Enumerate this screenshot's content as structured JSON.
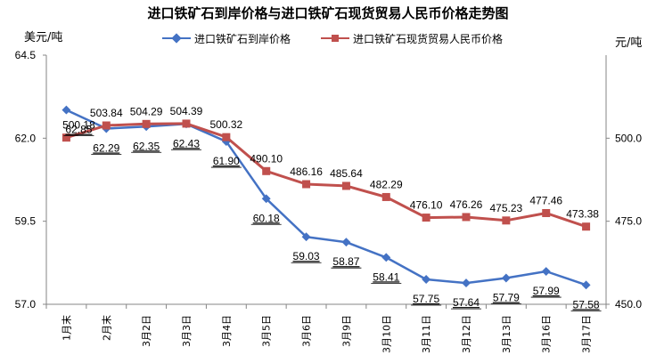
{
  "chart_data": {
    "type": "line",
    "title": "进口铁矿石到岸价格与进口铁矿石现货贸易人民币价格走势图",
    "y_left_unit": "美元/吨",
    "y_right_unit": "元/吨",
    "categories": [
      "1月末",
      "2月末",
      "3月2日",
      "3月3日",
      "3月4日",
      "3月5日",
      "3月6日",
      "3月9日",
      "3月10日",
      "3月11日",
      "3月12日",
      "3月13日",
      "3月16日",
      "3月17日"
    ],
    "y_left": {
      "min": 57.0,
      "max": 64.5,
      "ticks": [
        "57.0",
        "59.5",
        "62.0",
        "64.5"
      ]
    },
    "y_right": {
      "min": 450.0,
      "max": 525.0,
      "ticks": [
        "450.0",
        "475.0",
        "500.0"
      ]
    },
    "series": [
      {
        "name": "进口铁矿石到岸价格",
        "axis": "left",
        "color": "#4472c4",
        "marker": "diamond",
        "values": [
          62.85,
          62.29,
          62.35,
          62.43,
          61.9,
          60.18,
          59.03,
          58.87,
          58.41,
          57.75,
          57.64,
          57.79,
          57.99,
          57.58
        ],
        "labels": [
          "62.85",
          "62.29",
          "62.35",
          "62.43",
          "61.90",
          "60.18",
          "59.03",
          "58.87",
          "58.41",
          "57.75",
          "57.64",
          "57.79",
          "57.99",
          "57.58"
        ]
      },
      {
        "name": "进口铁矿石现货贸易人民币价格",
        "axis": "right",
        "color": "#c0504d",
        "marker": "square",
        "values": [
          500.18,
          503.84,
          504.29,
          504.39,
          500.32,
          490.1,
          486.16,
          485.64,
          482.29,
          476.1,
          476.26,
          475.23,
          477.46,
          473.38
        ],
        "labels": [
          "500.18",
          "503.84",
          "504.29",
          "504.39",
          "500.32",
          "490.10",
          "486.16",
          "485.64",
          "482.29",
          "476.10",
          "476.26",
          "475.23",
          "477.46",
          "473.38"
        ]
      }
    ],
    "grid": false,
    "legend": "top"
  }
}
